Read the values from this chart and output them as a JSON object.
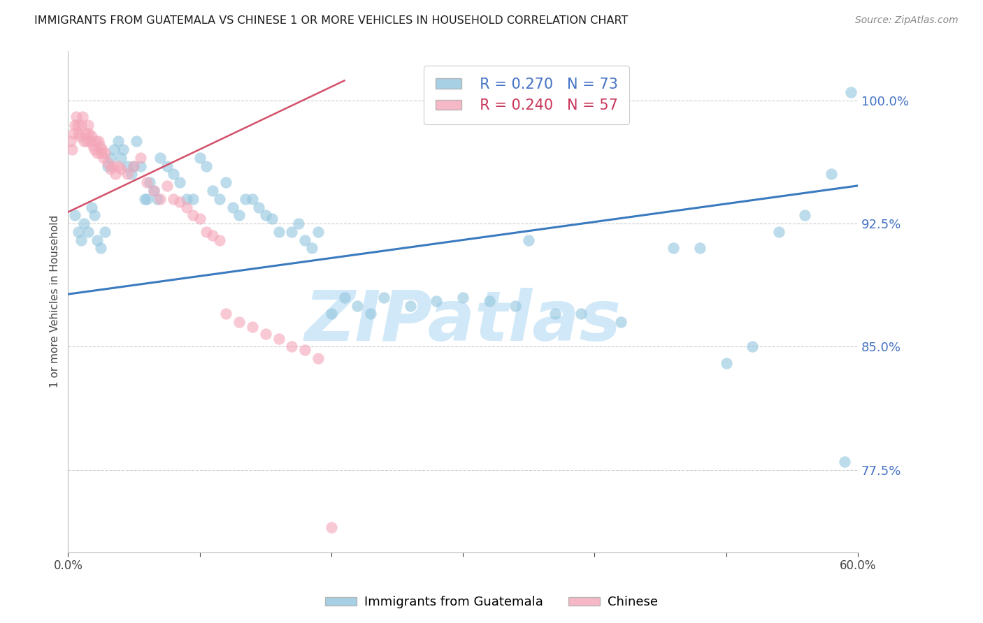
{
  "title": "IMMIGRANTS FROM GUATEMALA VS CHINESE 1 OR MORE VEHICLES IN HOUSEHOLD CORRELATION CHART",
  "source": "Source: ZipAtlas.com",
  "ylabel": "1 or more Vehicles in Household",
  "xlim": [
    0.0,
    0.6
  ],
  "ylim": [
    0.725,
    1.03
  ],
  "yticks": [
    0.775,
    0.85,
    0.925,
    1.0
  ],
  "ytick_labels": [
    "77.5%",
    "85.0%",
    "92.5%",
    "100.0%"
  ],
  "xticks": [
    0.0,
    0.1,
    0.2,
    0.3,
    0.4,
    0.5,
    0.6
  ],
  "xtick_labels": [
    "0.0%",
    "",
    "",
    "",
    "",
    "",
    "60.0%"
  ],
  "legend_blue_r": "R = 0.270",
  "legend_blue_n": "N = 73",
  "legend_pink_r": "R = 0.240",
  "legend_pink_n": "N = 57",
  "blue_color": "#92c5de",
  "pink_color": "#f4a6b8",
  "blue_line_color": "#3a7abf",
  "pink_line_color": "#d4506a",
  "watermark": "ZIPatlas",
  "watermark_color": "#d0e8f8",
  "blue_scatter_x": [
    0.005,
    0.008,
    0.01,
    0.012,
    0.015,
    0.018,
    0.02,
    0.022,
    0.025,
    0.028,
    0.03,
    0.032,
    0.035,
    0.038,
    0.04,
    0.042,
    0.045,
    0.048,
    0.05,
    0.052,
    0.055,
    0.058,
    0.06,
    0.062,
    0.065,
    0.068,
    0.07,
    0.075,
    0.08,
    0.085,
    0.09,
    0.095,
    0.1,
    0.105,
    0.11,
    0.115,
    0.12,
    0.125,
    0.13,
    0.135,
    0.14,
    0.145,
    0.15,
    0.155,
    0.16,
    0.17,
    0.175,
    0.18,
    0.185,
    0.19,
    0.2,
    0.21,
    0.22,
    0.23,
    0.24,
    0.26,
    0.28,
    0.3,
    0.32,
    0.34,
    0.35,
    0.37,
    0.39,
    0.42,
    0.46,
    0.48,
    0.5,
    0.52,
    0.54,
    0.56,
    0.58,
    0.59,
    0.595
  ],
  "blue_scatter_y": [
    0.93,
    0.92,
    0.915,
    0.925,
    0.92,
    0.935,
    0.93,
    0.915,
    0.91,
    0.92,
    0.96,
    0.965,
    0.97,
    0.975,
    0.965,
    0.97,
    0.96,
    0.955,
    0.96,
    0.975,
    0.96,
    0.94,
    0.94,
    0.95,
    0.945,
    0.94,
    0.965,
    0.96,
    0.955,
    0.95,
    0.94,
    0.94,
    0.965,
    0.96,
    0.945,
    0.94,
    0.95,
    0.935,
    0.93,
    0.94,
    0.94,
    0.935,
    0.93,
    0.928,
    0.92,
    0.92,
    0.925,
    0.915,
    0.91,
    0.92,
    0.87,
    0.88,
    0.875,
    0.87,
    0.88,
    0.875,
    0.878,
    0.88,
    0.878,
    0.875,
    0.915,
    0.87,
    0.87,
    0.865,
    0.91,
    0.91,
    0.84,
    0.85,
    0.92,
    0.93,
    0.955,
    0.78,
    1.005
  ],
  "pink_scatter_x": [
    0.002,
    0.003,
    0.004,
    0.005,
    0.006,
    0.007,
    0.008,
    0.009,
    0.01,
    0.011,
    0.012,
    0.013,
    0.014,
    0.015,
    0.016,
    0.017,
    0.018,
    0.019,
    0.02,
    0.021,
    0.022,
    0.023,
    0.024,
    0.025,
    0.026,
    0.027,
    0.028,
    0.03,
    0.032,
    0.034,
    0.036,
    0.038,
    0.04,
    0.045,
    0.05,
    0.055,
    0.06,
    0.065,
    0.07,
    0.075,
    0.08,
    0.085,
    0.09,
    0.095,
    0.1,
    0.105,
    0.11,
    0.115,
    0.12,
    0.13,
    0.14,
    0.15,
    0.16,
    0.17,
    0.18,
    0.19,
    0.2
  ],
  "pink_scatter_y": [
    0.975,
    0.97,
    0.98,
    0.985,
    0.99,
    0.985,
    0.98,
    0.978,
    0.985,
    0.99,
    0.975,
    0.98,
    0.975,
    0.985,
    0.98,
    0.975,
    0.978,
    0.972,
    0.97,
    0.975,
    0.968,
    0.975,
    0.972,
    0.968,
    0.97,
    0.965,
    0.968,
    0.962,
    0.958,
    0.96,
    0.955,
    0.96,
    0.958,
    0.955,
    0.96,
    0.965,
    0.95,
    0.945,
    0.94,
    0.948,
    0.94,
    0.938,
    0.935,
    0.93,
    0.928,
    0.92,
    0.918,
    0.915,
    0.87,
    0.865,
    0.862,
    0.858,
    0.855,
    0.85,
    0.848,
    0.843,
    0.74
  ],
  "blue_trendline_x": [
    0.0,
    0.6
  ],
  "blue_trendline_y": [
    0.882,
    0.948
  ],
  "pink_trendline_x": [
    0.0,
    0.21
  ],
  "pink_trendline_y": [
    0.932,
    1.012
  ]
}
